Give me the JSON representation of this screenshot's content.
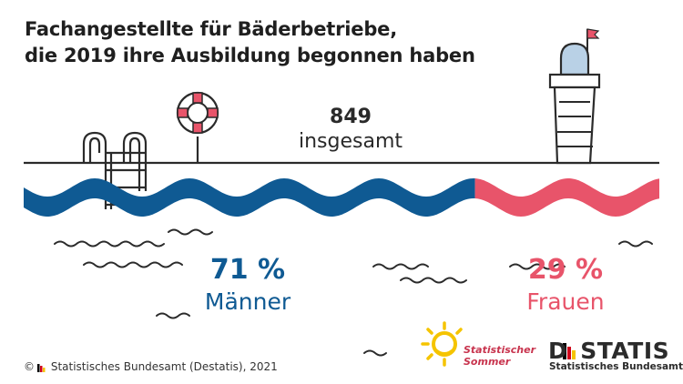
{
  "title_line1": "Fachangestellte für Bäderbetriebe,",
  "title_line2": "die 2019 ihre Ausbildung begonnen haben",
  "total": {
    "value": "849",
    "label": "insgesamt"
  },
  "footer": {
    "copyright": "© ",
    "text": "Statistisches Bundesamt (Destatis), 2021"
  },
  "sommer": {
    "line1": "Statistischer",
    "line2": "Sommer"
  },
  "destatis": {
    "name": "DSTATIS",
    "sub": "Statistisches Bundesamt"
  },
  "colors": {
    "men": "#0f5a93",
    "women": "#e8546a",
    "ink": "#2b2b2b",
    "tower_top": "#b9d1e6",
    "sun": "#f5c400"
  },
  "chart_data": {
    "type": "bar",
    "title": "Fachangestellte für Bäderbetriebe, die 2019 ihre Ausbildung begonnen haben",
    "total": 849,
    "categories": [
      "Männer",
      "Frauen"
    ],
    "values": [
      71,
      29
    ],
    "value_labels": [
      "71 %",
      "29 %"
    ],
    "unit": "%",
    "orientation": "horizontal-stacked"
  }
}
